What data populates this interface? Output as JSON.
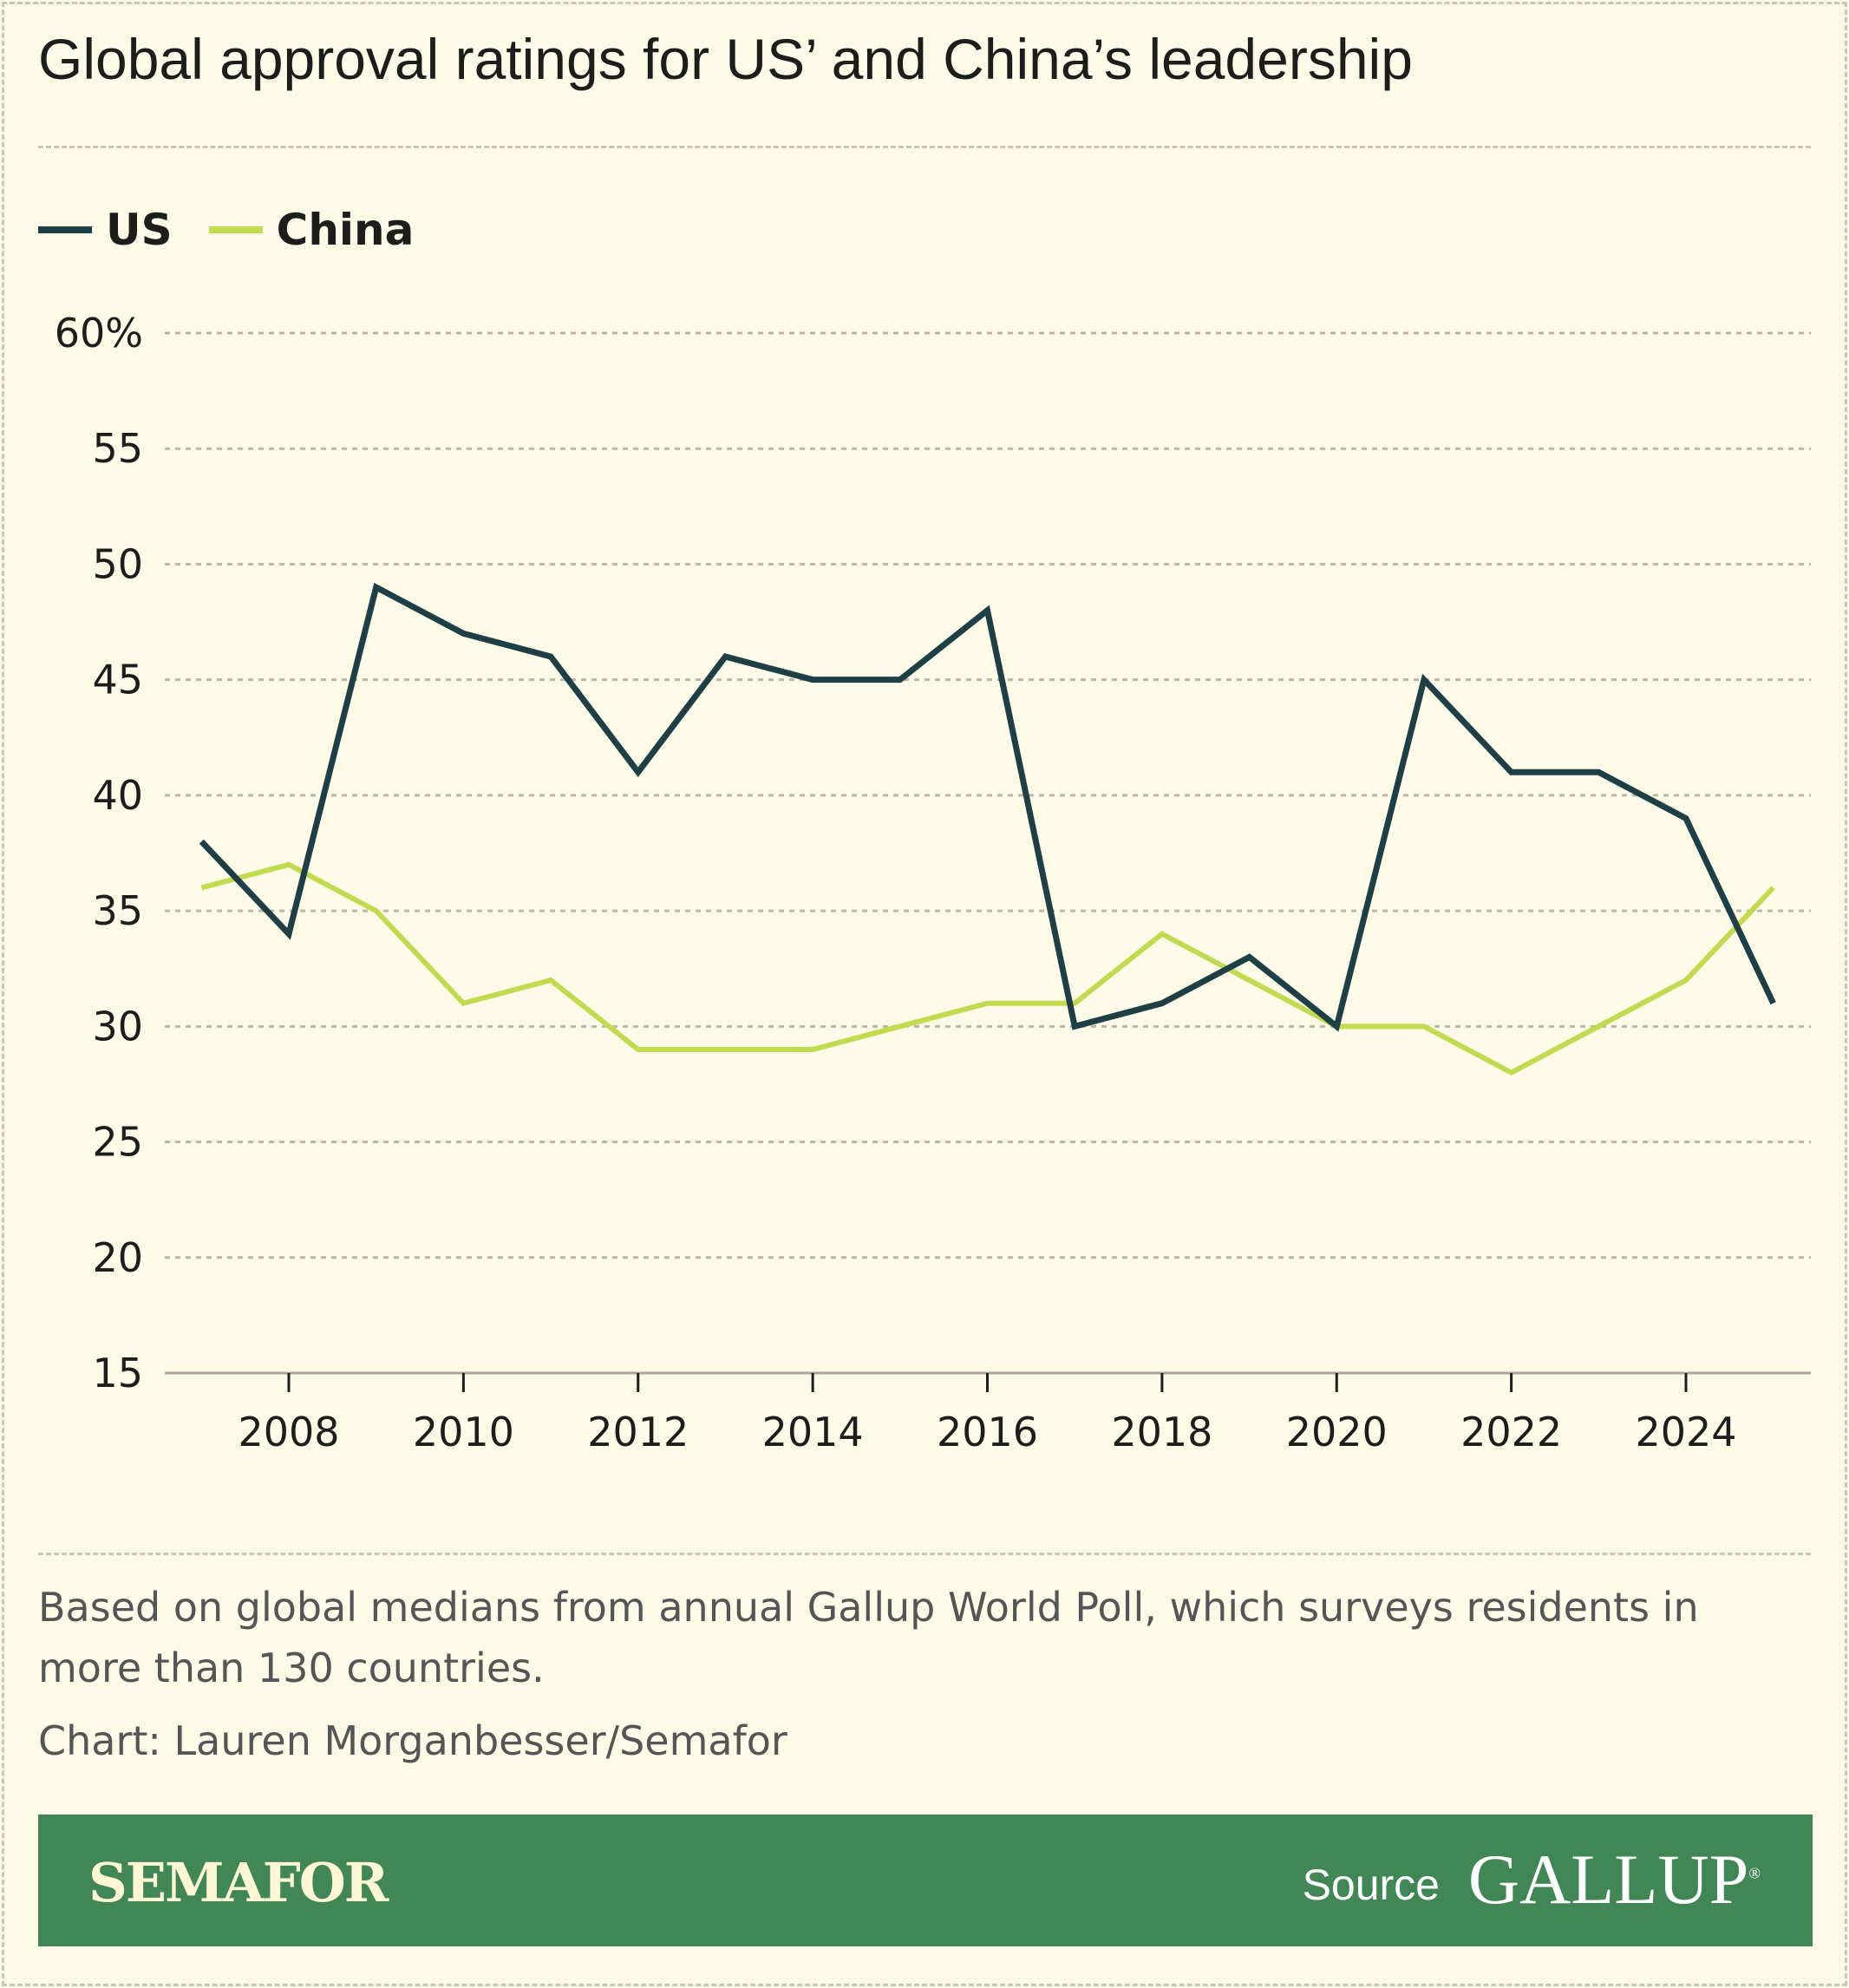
{
  "title": "Global approval ratings for US’ and China’s leadership",
  "colors": {
    "US": "#1f3f47",
    "China": "#c2da4f",
    "background": "#fdfbe8",
    "footer": "#418755"
  },
  "chart_data": {
    "type": "line",
    "title": "Global approval ratings for US’ and China’s leadership",
    "x": [
      2007,
      2008,
      2009,
      2010,
      2011,
      2012,
      2013,
      2014,
      2015,
      2016,
      2017,
      2018,
      2019,
      2020,
      2021,
      2022,
      2023,
      2024,
      2025
    ],
    "series": [
      {
        "name": "US",
        "values": [
          38,
          34,
          49,
          47,
          46,
          41,
          46,
          45,
          45,
          48,
          30,
          31,
          33,
          30,
          45,
          41,
          41,
          39,
          31
        ]
      },
      {
        "name": "China",
        "values": [
          36,
          37,
          35,
          31,
          32,
          29,
          29,
          29,
          30,
          31,
          31,
          34,
          32,
          30,
          30,
          28,
          30,
          32,
          36
        ]
      }
    ],
    "ylim": [
      15,
      60
    ],
    "yticks": [
      15,
      20,
      25,
      30,
      35,
      40,
      45,
      50,
      55,
      60
    ],
    "ytick_labels": [
      "15",
      "20",
      "25",
      "30",
      "35",
      "40",
      "45",
      "50",
      "55",
      "60%"
    ],
    "xticks": [
      2008,
      2010,
      2012,
      2014,
      2016,
      2018,
      2020,
      2022,
      2024
    ],
    "xtick_labels": [
      "2008",
      "2010",
      "2012",
      "2014",
      "2016",
      "2018",
      "2020",
      "2022",
      "2024"
    ],
    "grid": true,
    "legend": "top-left"
  },
  "note": "Based on global medians from annual Gallup World Poll, which surveys residents in more than 130 countries.",
  "credit": "Chart: Lauren Morganbesser/Semafor",
  "footer": {
    "brand": "SEMAFOR",
    "source_label": "Source",
    "source_logo": "GALLUP"
  }
}
